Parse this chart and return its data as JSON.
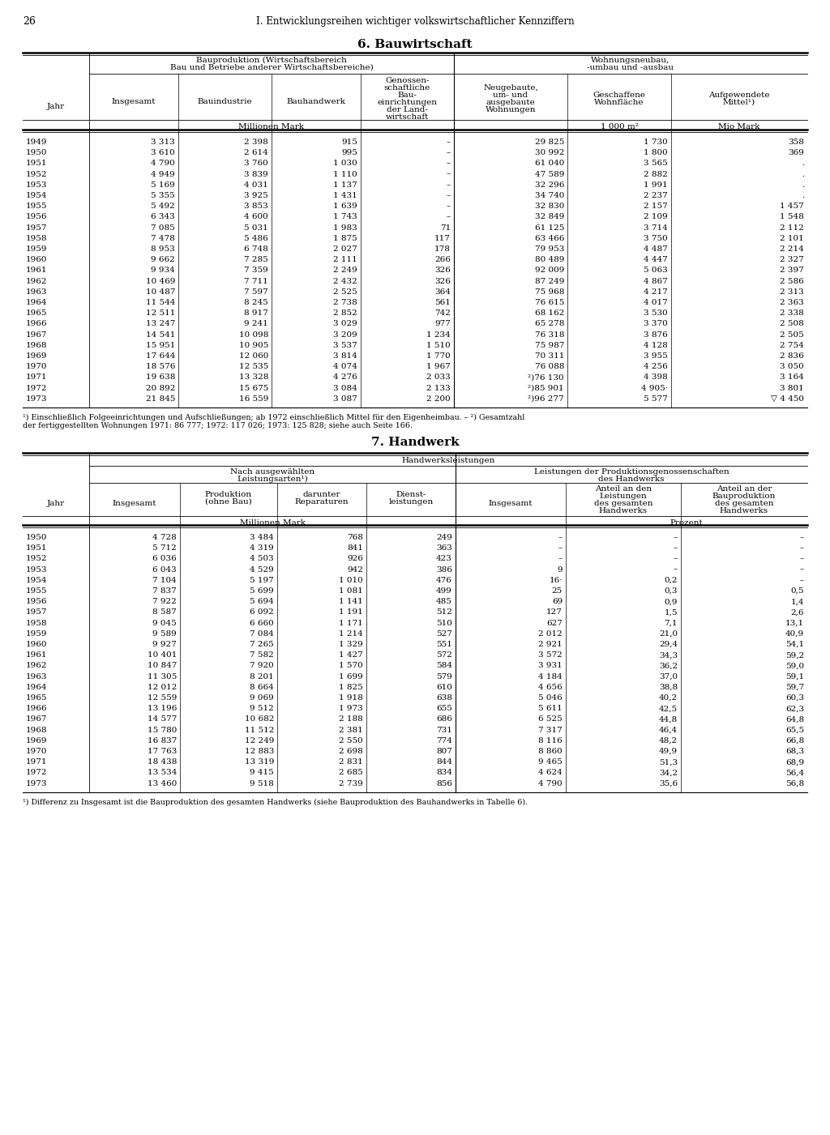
{
  "page_number": "26",
  "page_header": "I. Entwicklungsreihen wichtiger volkswirtschaftlicher Kennziffern",
  "section1_title": "6. Bauwirtschaft",
  "section2_title": "7. Handwerk",
  "table1_data": [
    [
      "1949",
      "3 313",
      "2 398",
      "915",
      "–",
      "29 825",
      "1 730",
      "358"
    ],
    [
      "1950",
      "3 610",
      "2 614",
      "995",
      "–",
      "30 992",
      "1 800",
      "369"
    ],
    [
      "1951",
      "4 790",
      "3 760",
      "1 030",
      "–",
      "61 040",
      "3 565",
      "."
    ],
    [
      "1952",
      "4 949",
      "3 839",
      "1 110",
      "–",
      "47 589",
      "2 882",
      "."
    ],
    [
      "1953",
      "5 169",
      "4 031",
      "1 137",
      "–",
      "32 296",
      "1 991",
      "."
    ],
    [
      "1954",
      "5 355",
      "3 925",
      "1 431",
      "–",
      "34 740",
      "2 237",
      "."
    ],
    [
      "1955",
      "5 492",
      "3 853",
      "1 639",
      "–",
      "32 830",
      "2 157",
      "1 457"
    ],
    [
      "1956",
      "6 343",
      "4 600",
      "1 743",
      "–",
      "32 849",
      "2 109",
      "1 548"
    ],
    [
      "1957",
      "7 085",
      "5 031",
      "1 983",
      "71",
      "61 125",
      "3 714",
      "2 112"
    ],
    [
      "1958",
      "7 478",
      "5 486",
      "1 875",
      "117",
      "63 466",
      "3 750",
      "2 101"
    ],
    [
      "1959",
      "8 953",
      "6 748",
      "2 027",
      "178",
      "79 953",
      "4 487",
      "2 214"
    ],
    [
      "1960",
      "9 662",
      "7 285",
      "2 111",
      "266",
      "80 489",
      "4 447",
      "2 327"
    ],
    [
      "1961",
      "9 934",
      "7 359",
      "2 249",
      "326",
      "92 009",
      "5 063",
      "2 397"
    ],
    [
      "1962",
      "10 469",
      "7 711",
      "2 432",
      "326",
      "87 249",
      "4 867",
      "2 586"
    ],
    [
      "1963",
      "10 487",
      "7 597",
      "2 525",
      "364",
      "75 968",
      "4 217",
      "2 313"
    ],
    [
      "1964",
      "11 544",
      "8 245",
      "2 738",
      "561",
      "76 615",
      "4 017",
      "2 363"
    ],
    [
      "1965",
      "12 511",
      "8 917",
      "2 852",
      "742",
      "68 162",
      "3 530",
      "2 338"
    ],
    [
      "1966",
      "13 247",
      "9 241",
      "3 029",
      "977",
      "65 278",
      "3 370",
      "2 508"
    ],
    [
      "1967",
      "14 541",
      "10 098",
      "3 209",
      "1 234",
      "76 318",
      "3 876",
      "2 505"
    ],
    [
      "1968",
      "15 951",
      "10 905",
      "3 537",
      "1 510",
      "75 987",
      "4 128",
      "2 754"
    ],
    [
      "1969",
      "17 644",
      "12 060",
      "3 814",
      "1 770",
      "70 311",
      "3 955",
      "2 836"
    ],
    [
      "1970",
      "18 576",
      "12 535",
      "4 074",
      "1 967",
      "76 088",
      "4 256",
      "3 050"
    ],
    [
      "1971",
      "19 638",
      "13 328",
      "4 276",
      "2 033",
      "²)76 130",
      "4 398",
      "3 164"
    ],
    [
      "1972",
      "20 892",
      "15 675",
      "3 084",
      "2 133",
      "²)85 901",
      "4 905·",
      "3 801"
    ],
    [
      "1973",
      "21 845",
      "16 559",
      "3 087",
      "2 200",
      "²)96 277",
      "5 577",
      "▽ 4 450"
    ]
  ],
  "table1_footnote1": "¹) Einschließlich Folgeeinrichtungen und Aufschließungen; ab 1972 einschließlich Mittel für den Eigenheimbau. – ²) Gesamtzahl",
  "table1_footnote2": "der fertiggestellten Wohnungen 1971: 86 777; 1972: 117 026; 1973: 125 828; siehe auch Seite 166.",
  "table2_data": [
    [
      "1950",
      "4 728",
      "3 484",
      "768",
      "249",
      "–",
      "–",
      "–"
    ],
    [
      "1951",
      "5 712",
      "4 319",
      "841",
      "363",
      "–",
      "–",
      "–"
    ],
    [
      "1952",
      "6 036",
      "4 503",
      "926",
      "423",
      "–",
      "–",
      "–"
    ],
    [
      "1953",
      "6 043",
      "4 529",
      "942",
      "386",
      "9",
      "–",
      "–"
    ],
    [
      "1954",
      "7 104",
      "5 197",
      "1 010",
      "476",
      "16·",
      "0,2",
      "–"
    ],
    [
      "1955",
      "7 837",
      "5 699",
      "1 081",
      "499",
      "25",
      "0,3",
      "0,5"
    ],
    [
      "1956",
      "7 922",
      "5 694",
      "1 141",
      "485",
      "69",
      "0,9",
      "1,4"
    ],
    [
      "1957",
      "8 587",
      "6 092",
      "1 191",
      "512",
      "127",
      "1,5",
      "2,6"
    ],
    [
      "1958",
      "9 045",
      "6 660",
      "1 171",
      "510",
      "627",
      "7,1",
      "13,1"
    ],
    [
      "1959",
      "9 589",
      "7 084",
      "1 214",
      "527",
      "2 012",
      "21,0",
      "40,9"
    ],
    [
      "1960",
      "9 927",
      "7 265",
      "1 329",
      "551",
      "2 921",
      "29,4",
      "54,1"
    ],
    [
      "1961",
      "10 401",
      "7 582",
      "1 427",
      "572",
      "3 572",
      "34,3",
      "59,2"
    ],
    [
      "1962",
      "10 847",
      "7 920",
      "1 570",
      "584",
      "3 931",
      "36,2",
      "59,0"
    ],
    [
      "1963",
      "11 305",
      "8 201",
      "1 699",
      "579",
      "4 184",
      "37,0",
      "59,1"
    ],
    [
      "1964",
      "12 012",
      "8 664",
      "1 825",
      "610",
      "4 656",
      "38,8",
      "59,7"
    ],
    [
      "1965",
      "12 559",
      "9 069",
      "1 918",
      "638",
      "5 046",
      "40,2",
      "60,3"
    ],
    [
      "1966",
      "13 196",
      "9 512",
      "1 973",
      "655",
      "5 611",
      "42,5",
      "62,3"
    ],
    [
      "1967",
      "14 577",
      "10 682",
      "2 188",
      "686",
      "6 525",
      "44,8",
      "64,8"
    ],
    [
      "1968",
      "15 780",
      "11 512",
      "2 381",
      "731",
      "7 317",
      "46,4",
      "65,5"
    ],
    [
      "1969",
      "16 837",
      "12 249",
      "2 550",
      "774",
      "8 116",
      "48,2",
      "66,8"
    ],
    [
      "1970",
      "17 763",
      "12 883",
      "2 698",
      "807",
      "8 860",
      "49,9",
      "68,3"
    ],
    [
      "1971",
      "18 438",
      "13 319",
      "2 831",
      "844",
      "9 465",
      "51,3",
      "68,9"
    ],
    [
      "1972",
      "13 534",
      "9 415",
      "2 685",
      "834",
      "4 624",
      "34,2",
      "56,4"
    ],
    [
      "1973",
      "13 460",
      "9 518",
      "2 739",
      "856",
      "4 790",
      "35,6",
      "56,8"
    ]
  ],
  "table2_footnote": "¹) Differenz zu Insgesamt ist die Bauproduktion des gesamten Handwerks (siehe Bauproduktion des Bauhandwerks in Tabelle 6)."
}
